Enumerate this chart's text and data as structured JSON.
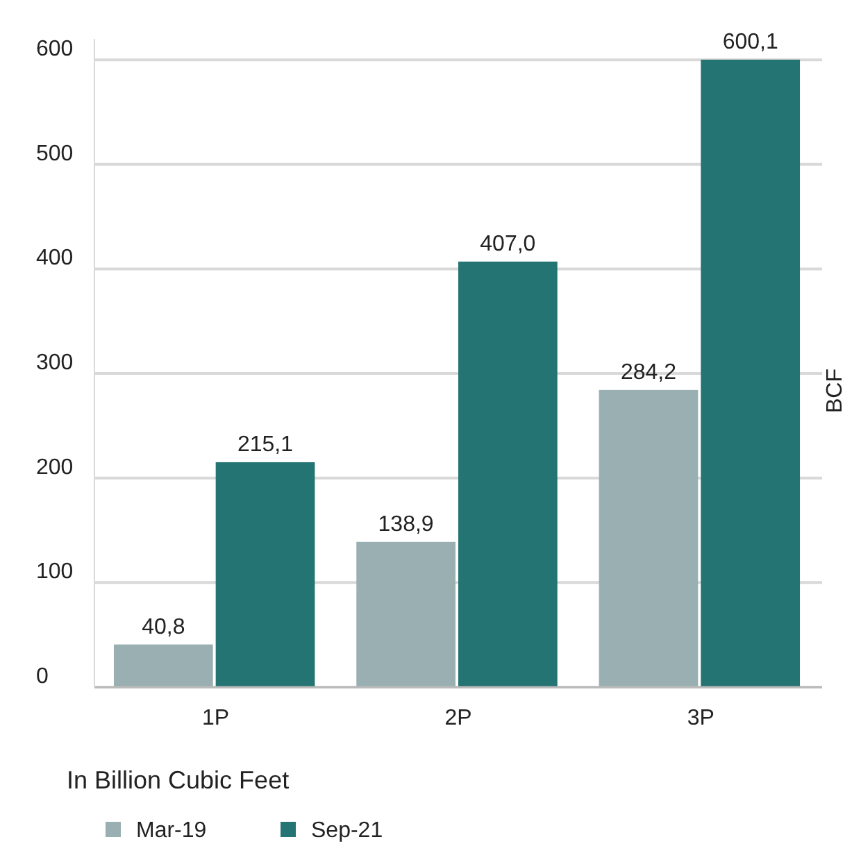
{
  "chart_data": {
    "type": "bar",
    "xlabel": "In Billion Cubic Feet",
    "ylabel": "BCF",
    "categories": [
      "1P",
      "2P",
      "3P"
    ],
    "series": [
      {
        "name": "Mar-19",
        "color": "#9aafb1",
        "values": [
          40.8,
          138.9,
          284.2
        ],
        "value_labels": [
          "40,8",
          "138,9",
          "284,2"
        ]
      },
      {
        "name": "Sep-21",
        "color": "#237472",
        "values": [
          215.1,
          407.0,
          600.1
        ],
        "value_labels": [
          "215,1",
          "407,0",
          "600,1"
        ]
      }
    ],
    "ylim": [
      0,
      620
    ],
    "yticks": [
      0,
      100,
      200,
      300,
      400,
      500,
      600
    ],
    "grid": "y",
    "legend": "bottom left"
  }
}
